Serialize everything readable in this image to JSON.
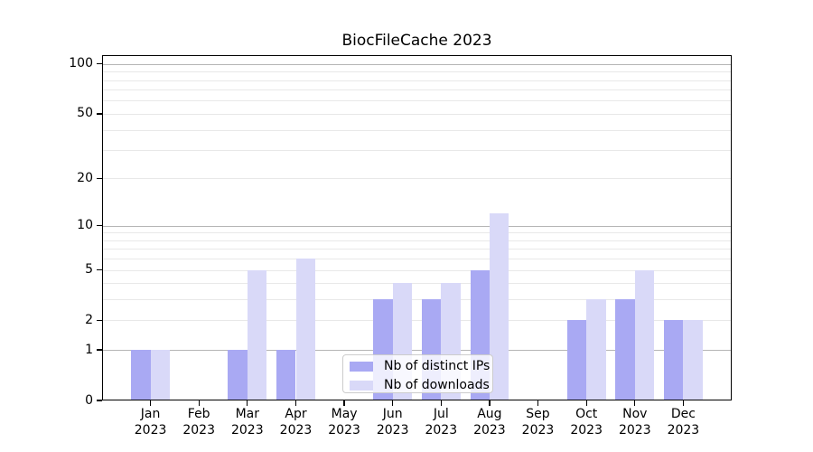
{
  "chart_data": {
    "type": "bar",
    "title": "BiocFileCache 2023",
    "year_label": "2023",
    "months": [
      "Jan",
      "Feb",
      "Mar",
      "Apr",
      "May",
      "Jun",
      "Jul",
      "Aug",
      "Sep",
      "Oct",
      "Nov",
      "Dec"
    ],
    "series": [
      {
        "name": "Nb of distinct IPs",
        "color": "#a9a9f3",
        "values": [
          1,
          0,
          1,
          1,
          0,
          3,
          3,
          5,
          0,
          2,
          3,
          2
        ]
      },
      {
        "name": "Nb of downloads",
        "color": "#d9d9f8",
        "values": [
          1,
          0,
          5,
          6,
          0,
          4,
          4,
          12,
          0,
          3,
          5,
          2
        ]
      }
    ],
    "yscale": "log1p",
    "ylim": [
      0,
      113
    ],
    "yticks": [
      0,
      1,
      2,
      5,
      10,
      20,
      50,
      100
    ],
    "ygrid_major": [
      1,
      10,
      100
    ],
    "ygrid_minor": [
      2,
      3,
      4,
      5,
      6,
      7,
      8,
      9,
      20,
      30,
      40,
      50,
      60,
      70,
      80,
      90
    ],
    "grid": true,
    "legend_position": "lower center",
    "xlabel": "",
    "ylabel": ""
  },
  "colors": {
    "grid_major": "#b5b5b5",
    "grid_minor": "#e8e8e8",
    "axis": "#000000",
    "legend_border": "#cccccc",
    "legend_bg": "rgba(255,255,255,0.8)"
  }
}
